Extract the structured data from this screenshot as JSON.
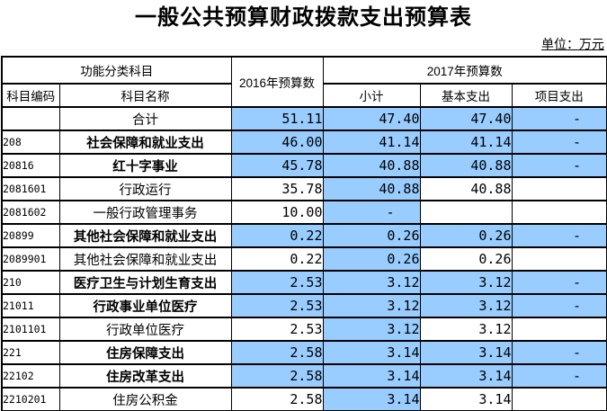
{
  "page": {
    "title": "一般公共预算财政拨款支出预算表",
    "unit_label": "单位：万元"
  },
  "colors": {
    "highlight_blue": "#99CCFF",
    "border": "#000000",
    "background": "#FFFFFF",
    "text": "#000000"
  },
  "table": {
    "header": {
      "function_group": "功能分类科目",
      "budget_2016": "2016年预算数",
      "budget_2017": "2017年预算数",
      "code": "科目编码",
      "name": "科目名称",
      "subtotal": "小计",
      "basic_expenditure": "基本支出",
      "project_expenditure": "项目支出"
    },
    "value_column_names": [
      "cell-value-2016",
      "cell-value-2017-subtotal",
      "cell-value-2017-basic",
      "cell-value-2017-project"
    ],
    "rows": [
      {
        "code": "",
        "name": "合计",
        "bold": false,
        "values": [
          {
            "text": "51.11",
            "highlighted": true
          },
          {
            "text": "47.40",
            "highlighted": true
          },
          {
            "text": "47.40",
            "highlighted": true
          },
          {
            "text": "-",
            "highlighted": true
          }
        ]
      },
      {
        "code": "208",
        "name": "社会保障和就业支出",
        "bold": true,
        "values": [
          {
            "text": "46.00",
            "highlighted": true
          },
          {
            "text": "41.14",
            "highlighted": true
          },
          {
            "text": "41.14",
            "highlighted": true
          },
          {
            "text": "-",
            "highlighted": true
          }
        ]
      },
      {
        "code": "20816",
        "name": "红十字事业",
        "bold": true,
        "values": [
          {
            "text": "45.78",
            "highlighted": true
          },
          {
            "text": "40.88",
            "highlighted": true
          },
          {
            "text": "40.88",
            "highlighted": true
          },
          {
            "text": "-",
            "highlighted": true
          }
        ]
      },
      {
        "code": "2081601",
        "name": "行政运行",
        "bold": false,
        "values": [
          {
            "text": "35.78",
            "highlighted": false
          },
          {
            "text": "40.88",
            "highlighted": true
          },
          {
            "text": "40.88",
            "highlighted": false
          },
          {
            "text": "",
            "highlighted": false
          }
        ]
      },
      {
        "code": "2081602",
        "name": "一般行政管理事务",
        "bold": false,
        "values": [
          {
            "text": "10.00",
            "highlighted": false
          },
          {
            "text": "-",
            "highlighted": true
          },
          {
            "text": "",
            "highlighted": false
          },
          {
            "text": "",
            "highlighted": false
          }
        ]
      },
      {
        "code": "20899",
        "name": "其他社会保障和就业支出",
        "bold": true,
        "values": [
          {
            "text": "0.22",
            "highlighted": true
          },
          {
            "text": "0.26",
            "highlighted": true
          },
          {
            "text": "0.26",
            "highlighted": true
          },
          {
            "text": "-",
            "highlighted": true
          }
        ]
      },
      {
        "code": "2089901",
        "name": "其他社会保障和就业支出",
        "bold": false,
        "values": [
          {
            "text": "0.22",
            "highlighted": false
          },
          {
            "text": "0.26",
            "highlighted": true
          },
          {
            "text": "0.26",
            "highlighted": false
          },
          {
            "text": "",
            "highlighted": false
          }
        ]
      },
      {
        "code": "210",
        "name": "医疗卫生与计划生育支出",
        "bold": true,
        "values": [
          {
            "text": "2.53",
            "highlighted": true
          },
          {
            "text": "3.12",
            "highlighted": true
          },
          {
            "text": "3.12",
            "highlighted": true
          },
          {
            "text": "-",
            "highlighted": true
          }
        ]
      },
      {
        "code": "21011",
        "name": "行政事业单位医疗",
        "bold": true,
        "values": [
          {
            "text": "2.53",
            "highlighted": true
          },
          {
            "text": "3.12",
            "highlighted": true
          },
          {
            "text": "3.12",
            "highlighted": true
          },
          {
            "text": "-",
            "highlighted": true
          }
        ]
      },
      {
        "code": "2101101",
        "name": "行政单位医疗",
        "bold": false,
        "values": [
          {
            "text": "2.53",
            "highlighted": false
          },
          {
            "text": "3.12",
            "highlighted": true
          },
          {
            "text": "3.12",
            "highlighted": false
          },
          {
            "text": "",
            "highlighted": false
          }
        ]
      },
      {
        "code": "221",
        "name": "住房保障支出",
        "bold": true,
        "values": [
          {
            "text": "2.58",
            "highlighted": true
          },
          {
            "text": "3.14",
            "highlighted": true
          },
          {
            "text": "3.14",
            "highlighted": true
          },
          {
            "text": "-",
            "highlighted": true
          }
        ]
      },
      {
        "code": "22102",
        "name": "住房改革支出",
        "bold": true,
        "values": [
          {
            "text": "2.58",
            "highlighted": true
          },
          {
            "text": "3.14",
            "highlighted": true
          },
          {
            "text": "3.14",
            "highlighted": true
          },
          {
            "text": "-",
            "highlighted": true
          }
        ]
      },
      {
        "code": "2210201",
        "name": "住房公积金",
        "bold": false,
        "values": [
          {
            "text": "2.58",
            "highlighted": false
          },
          {
            "text": "3.14",
            "highlighted": true
          },
          {
            "text": "3.14",
            "highlighted": false
          },
          {
            "text": "",
            "highlighted": false
          }
        ]
      }
    ]
  }
}
